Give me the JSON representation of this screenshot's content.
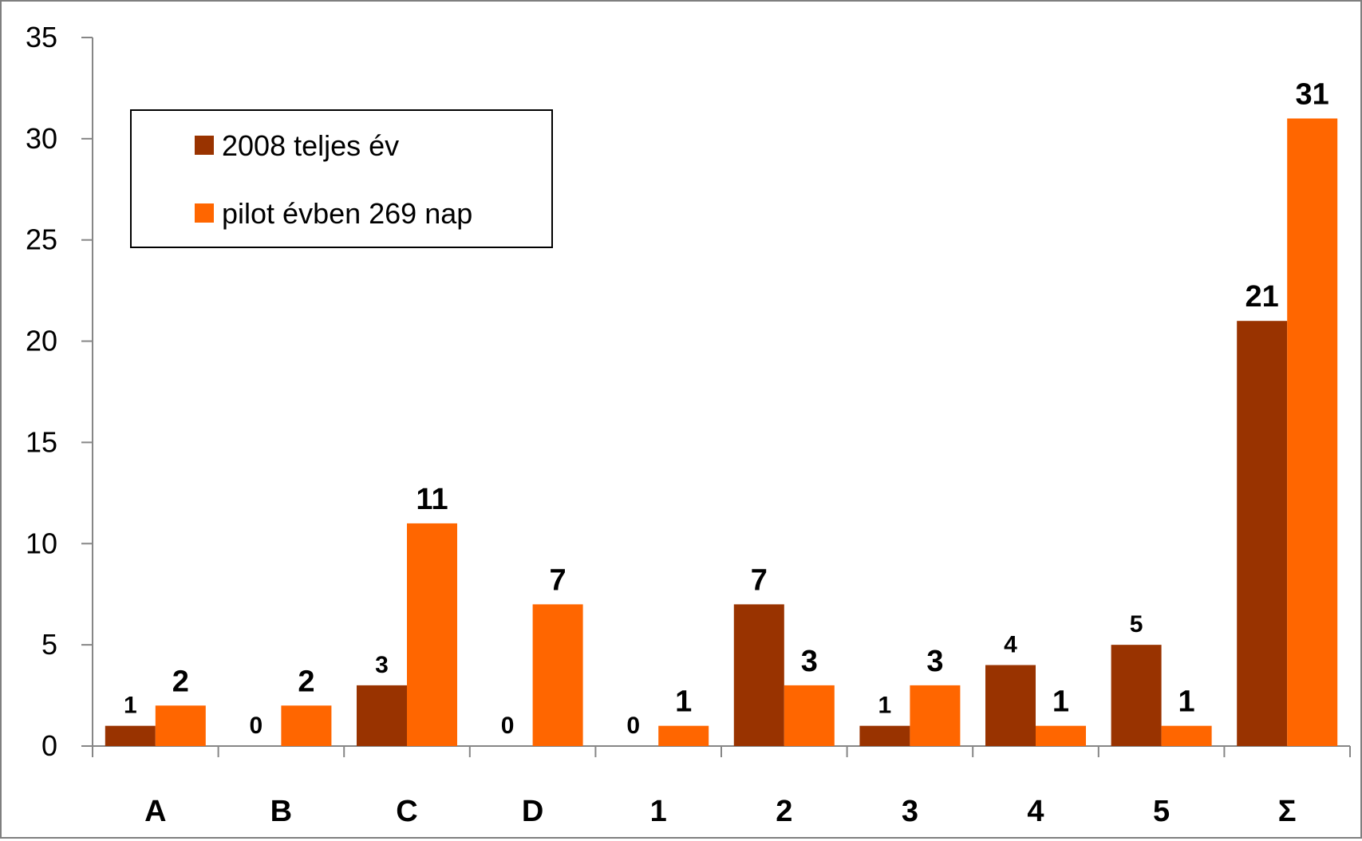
{
  "chart_data": {
    "type": "bar",
    "categories": [
      "A",
      "B",
      "C",
      "D",
      "1",
      "2",
      "3",
      "4",
      "5",
      "Σ"
    ],
    "series": [
      {
        "name": "2008 teljes év",
        "color": "#993300",
        "values": [
          1,
          0,
          3,
          0,
          0,
          7,
          1,
          4,
          5,
          21
        ],
        "labels": [
          "1",
          "0",
          "3",
          "0",
          "0",
          "7",
          "1",
          "4",
          "5",
          "21"
        ]
      },
      {
        "name": "pilot évben 269 nap",
        "color": "#ff6600",
        "values": [
          2,
          2,
          11,
          7,
          1,
          3,
          3,
          1,
          1,
          31
        ],
        "labels": [
          "2",
          "2",
          "11",
          "7",
          "1",
          "3",
          "3",
          "1",
          "1",
          "31"
        ]
      }
    ],
    "ylim": [
      0,
      35
    ],
    "yticks": [
      "0",
      "5",
      "10",
      "15",
      "20",
      "25",
      "30",
      "35"
    ],
    "ytick_values": [
      0,
      5,
      10,
      15,
      20,
      25,
      30,
      35
    ],
    "grid": false,
    "legend_position": "top-left, inside plot, boxed",
    "title": "",
    "xlabel": "",
    "ylabel": ""
  }
}
